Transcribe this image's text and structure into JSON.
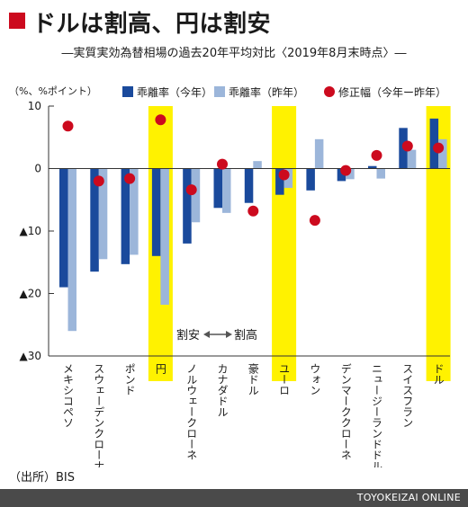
{
  "title": "ドルは割高、円は割安",
  "subtitle": "―実質実効為替相場の過去20年平均対比〈2019年8月末時点〉―",
  "source": "（出所）BIS",
  "footer": "TOYOKEIZAI ONLINE",
  "chart_data": {
    "type": "bar",
    "unit_label": "（%、%ポイント）",
    "categories": [
      "メキシコペソ",
      "スウェーデンクローナ",
      "ポンド",
      "円",
      "ノルウェークローネ",
      "カナダドル",
      "豪ドル",
      "ユーロ",
      "ウォン",
      "デンマーククローネ",
      "ニュージーランドドル",
      "スイスフラン",
      "ドル"
    ],
    "highlighted": [
      "円",
      "ユーロ",
      "ドル"
    ],
    "series": [
      {
        "name": "乖離率（今年）",
        "kind": "bar",
        "color": "#1a4a9c",
        "values": [
          -19,
          -16.5,
          -15.3,
          -14,
          -12,
          -6.3,
          -5.5,
          -4.2,
          -3.5,
          -2,
          0.4,
          6.5,
          8
        ]
      },
      {
        "name": "乖離率（昨年）",
        "kind": "bar",
        "color": "#9cb6da",
        "values": [
          -26,
          -14.5,
          -13.8,
          -21.8,
          -8.6,
          -7.1,
          1.2,
          -3.1,
          4.7,
          -1.7,
          -1.6,
          3,
          4.7
        ]
      },
      {
        "name": "修正幅（今年ー昨年）",
        "kind": "dot",
        "color": "#cc0a1e",
        "values": [
          6.8,
          -2,
          -1.6,
          7.8,
          -3.4,
          0.7,
          -6.8,
          -1,
          -8.3,
          -0.3,
          2.1,
          3.6,
          3.3
        ]
      }
    ],
    "ylim": [
      -30,
      10
    ],
    "yticks": [
      {
        "value": 10,
        "label": "10"
      },
      {
        "value": 0,
        "label": "0"
      },
      {
        "value": -10,
        "label": "▲10"
      },
      {
        "value": -20,
        "label": "▲20"
      },
      {
        "value": -30,
        "label": "▲30"
      }
    ],
    "annotation": {
      "left": "割安",
      "right": "割高"
    },
    "colors": {
      "highlight": "#fff200",
      "axis": "#333333"
    }
  }
}
